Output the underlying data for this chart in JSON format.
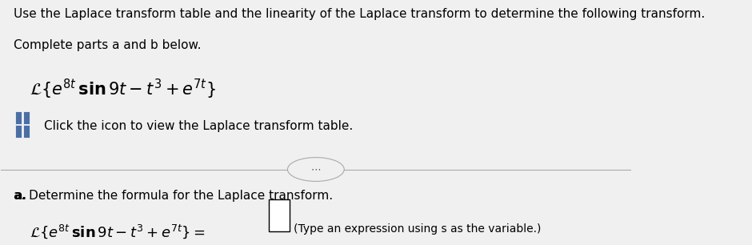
{
  "background_color": "#f0f0f0",
  "title_text": "Use the Laplace transform table and the linearity of the Laplace transform to determine the following transform.",
  "subtitle_text": "Complete parts a and b below.",
  "main_font_size": 11,
  "math_font_size": 13,
  "small_font_size": 10,
  "icon_color": "#4a6fa5",
  "click_text": "Click the icon to view the Laplace transform table.",
  "divider_dots": "⋯",
  "part_a_label": "a.",
  "part_a_text": "Determine the formula for the Laplace transform.",
  "answer_box_hint": "(Type an expression using s as the variable.)"
}
